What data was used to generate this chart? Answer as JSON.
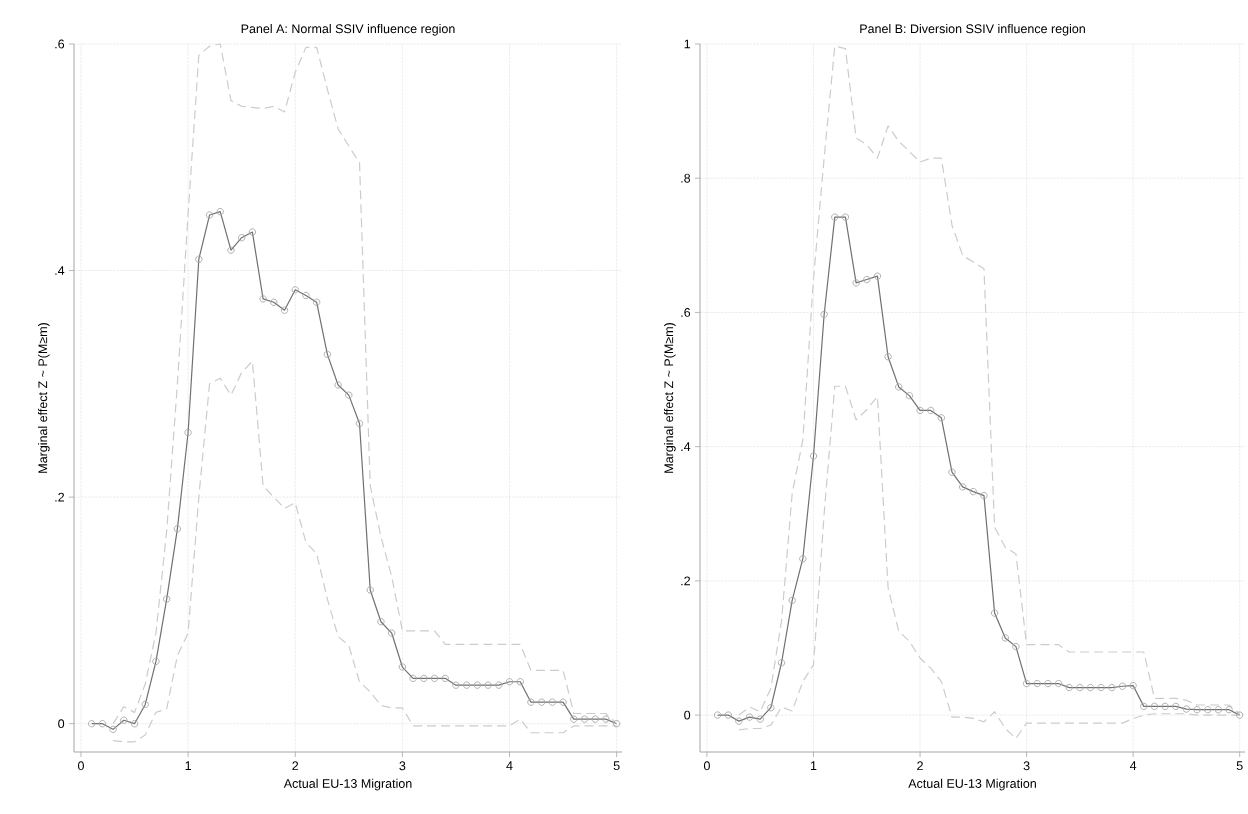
{
  "chart_data": [
    {
      "type": "line",
      "title": "Panel A: Normal SSIV influence region",
      "xlabel": "Actual EU-13 Migration",
      "ylabel": "Marginal effect Z ~ P(M≥m)",
      "grid": true,
      "xlim": [
        -0.065,
        5.05
      ],
      "ylim": [
        -0.025,
        0.6
      ],
      "xticks": [
        0,
        1,
        2,
        3,
        4,
        5
      ],
      "yticks": [
        0,
        {
          "value": 0.2,
          "label": ".2"
        },
        {
          "value": 0.4,
          "label": ".4"
        },
        {
          "value": 0.6,
          "label": ".6"
        }
      ],
      "x": [
        0.1,
        0.2,
        0.3,
        0.4,
        0.5,
        0.6,
        0.7,
        0.8,
        0.9,
        1.0,
        1.1,
        1.2,
        1.3,
        1.4,
        1.5,
        1.6,
        1.7,
        1.8,
        1.9,
        2.0,
        2.1,
        2.2,
        2.3,
        2.4,
        2.5,
        2.6,
        2.7,
        2.8,
        2.9,
        3.0,
        3.1,
        3.2,
        3.3,
        3.4,
        3.5,
        3.6,
        3.7,
        3.8,
        3.9,
        4.0,
        4.1,
        4.2,
        4.3,
        4.4,
        4.5,
        4.6,
        4.7,
        4.8,
        4.9,
        5.0
      ],
      "series": [
        {
          "color": "#707070",
          "marker": "circle",
          "line_style": "solid",
          "values": [
            0,
            0,
            -0.005,
            0.003,
            0,
            0.017,
            0.055,
            0.11,
            0.172,
            0.257,
            0.41,
            0.449,
            0.452,
            0.418,
            0.429,
            0.434,
            0.375,
            0.372,
            0.365,
            0.383,
            0.378,
            0.372,
            0.326,
            0.299,
            0.29,
            0.265,
            0.118,
            0.09,
            0.08,
            0.05,
            0.04,
            0.04,
            0.04,
            0.04,
            0.034,
            0.034,
            0.034,
            0.034,
            0.034,
            0.037,
            0.037,
            0.019,
            0.019,
            0.019,
            0.019,
            0.004,
            0.004,
            0.004,
            0.004,
            0.0
          ]
        },
        {
          "color": "#cccccc",
          "marker": "none",
          "line_style": "dashed",
          "x": [
            0.3,
            0.4,
            0.5,
            0.6,
            0.7,
            0.8,
            0.9,
            1.0,
            1.1,
            1.2,
            1.3,
            1.4,
            1.5,
            1.6,
            1.7,
            1.8,
            1.9,
            2.0,
            2.1,
            2.2,
            2.3,
            2.4,
            2.5,
            2.6,
            2.7,
            2.8,
            2.9,
            3.0,
            3.1,
            3.2,
            3.3,
            3.4,
            3.5,
            3.6,
            3.7,
            3.8,
            3.9,
            4.0,
            4.1,
            4.2,
            4.3,
            4.4,
            4.5,
            4.6,
            4.7,
            4.8,
            4.9,
            5.0
          ],
          "values": [
            0.0,
            0.015,
            0.01,
            0.035,
            0.08,
            0.17,
            0.3,
            0.45,
            0.59,
            0.598,
            0.6,
            0.55,
            0.545,
            0.544,
            0.543,
            0.545,
            0.54,
            0.575,
            0.597,
            0.597,
            0.56,
            0.525,
            0.51,
            0.495,
            0.21,
            0.165,
            0.13,
            0.082,
            0.082,
            0.082,
            0.082,
            0.07,
            0.07,
            0.07,
            0.07,
            0.07,
            0.07,
            0.07,
            0.07,
            0.047,
            0.047,
            0.047,
            0.047,
            0.009,
            0.009,
            0.009,
            0.009,
            0.0
          ]
        },
        {
          "color": "#cccccc",
          "marker": "none",
          "line_style": "dashed",
          "x": [
            0.3,
            0.4,
            0.5,
            0.6,
            0.7,
            0.8,
            0.9,
            1.0,
            1.1,
            1.2,
            1.3,
            1.4,
            1.5,
            1.6,
            1.7,
            1.8,
            1.9,
            2.0,
            2.1,
            2.2,
            2.3,
            2.4,
            2.5,
            2.6,
            2.7,
            2.8,
            2.9,
            3.0,
            3.1,
            3.2,
            3.3,
            3.4,
            3.5,
            3.6,
            3.7,
            3.8,
            3.9,
            4.0,
            4.1,
            4.2,
            4.3,
            4.4,
            4.5,
            4.6,
            4.7,
            4.8,
            4.9,
            5.0
          ],
          "values": [
            -0.015,
            -0.016,
            -0.016,
            -0.01,
            0.01,
            0.013,
            0.06,
            0.08,
            0.2,
            0.3,
            0.305,
            0.29,
            0.31,
            0.32,
            0.21,
            0.2,
            0.19,
            0.195,
            0.16,
            0.15,
            0.11,
            0.077,
            0.069,
            0.037,
            0.028,
            0.016,
            0.014,
            0.014,
            -0.002,
            -0.002,
            -0.002,
            -0.002,
            -0.002,
            -0.002,
            -0.002,
            -0.002,
            -0.002,
            -0.002,
            0.004,
            -0.008,
            -0.008,
            -0.008,
            -0.008,
            -0.002,
            -0.002,
            -0.002,
            -0.002,
            -0.002
          ]
        }
      ]
    },
    {
      "type": "line",
      "title": "Panel B: Diversion SSIV influence region",
      "xlabel": "Actual EU-13 Migration",
      "ylabel": "Marginal effect Z ~ P(M≥m)",
      "grid": true,
      "xlim": [
        -0.065,
        5.05
      ],
      "ylim": [
        -0.055,
        1
      ],
      "xticks": [
        0,
        1,
        2,
        3,
        4,
        5
      ],
      "yticks": [
        0,
        {
          "value": 0.2,
          "label": ".2"
        },
        {
          "value": 0.4,
          "label": ".4"
        },
        {
          "value": 0.6,
          "label": ".6"
        },
        {
          "value": 0.8,
          "label": ".8"
        },
        1
      ],
      "x": [
        0.1,
        0.2,
        0.3,
        0.4,
        0.5,
        0.6,
        0.7,
        0.8,
        0.9,
        1.0,
        1.1,
        1.2,
        1.3,
        1.4,
        1.5,
        1.6,
        1.7,
        1.8,
        1.9,
        2.0,
        2.1,
        2.2,
        2.3,
        2.4,
        2.5,
        2.6,
        2.7,
        2.8,
        2.9,
        3.0,
        3.1,
        3.2,
        3.3,
        3.4,
        3.5,
        3.6,
        3.7,
        3.8,
        3.9,
        4.0,
        4.1,
        4.2,
        4.3,
        4.4,
        4.5,
        4.6,
        4.7,
        4.8,
        4.9,
        5.0
      ],
      "series": [
        {
          "color": "#707070",
          "marker": "circle",
          "line_style": "solid",
          "values": [
            0,
            0,
            -0.009,
            -0.003,
            -0.006,
            0.011,
            0.078,
            0.171,
            0.233,
            0.386,
            0.597,
            0.742,
            0.742,
            0.644,
            0.649,
            0.654,
            0.534,
            0.489,
            0.476,
            0.454,
            0.454,
            0.443,
            0.362,
            0.34,
            0.333,
            0.327,
            0.152,
            0.115,
            0.102,
            0.047,
            0.047,
            0.047,
            0.047,
            0.041,
            0.041,
            0.041,
            0.041,
            0.041,
            0.043,
            0.044,
            0.013,
            0.013,
            0.013,
            0.013,
            0.009,
            0.008,
            0.008,
            0.008,
            0.008,
            0.0
          ]
        },
        {
          "color": "#cccccc",
          "marker": "none",
          "line_style": "dashed",
          "x": [
            0.3,
            0.4,
            0.5,
            0.6,
            0.7,
            0.8,
            0.9,
            1.0,
            1.1,
            1.2,
            1.3,
            1.4,
            1.5,
            1.6,
            1.7,
            1.8,
            1.9,
            2.0,
            2.1,
            2.2,
            2.3,
            2.4,
            2.5,
            2.6,
            2.7,
            2.8,
            2.9,
            3.0,
            3.1,
            3.2,
            3.3,
            3.4,
            3.5,
            3.6,
            3.7,
            3.8,
            3.9,
            4.0,
            4.1,
            4.2,
            4.3,
            4.4,
            4.5,
            4.6,
            4.7,
            4.8,
            4.9,
            5.0
          ],
          "values": [
            0.0,
            0.012,
            0.005,
            0.04,
            0.14,
            0.33,
            0.41,
            0.65,
            0.83,
            0.997,
            0.993,
            0.86,
            0.85,
            0.83,
            0.878,
            0.855,
            0.84,
            0.824,
            0.83,
            0.83,
            0.73,
            0.685,
            0.675,
            0.665,
            0.28,
            0.25,
            0.24,
            0.105,
            0.105,
            0.105,
            0.105,
            0.094,
            0.094,
            0.094,
            0.094,
            0.094,
            0.094,
            0.094,
            0.094,
            0.025,
            0.025,
            0.025,
            0.022,
            0.015,
            0.015,
            0.015,
            0.015,
            0.002
          ]
        },
        {
          "color": "#cccccc",
          "marker": "none",
          "line_style": "dashed",
          "x": [
            0.3,
            0.4,
            0.5,
            0.6,
            0.7,
            0.8,
            0.9,
            1.0,
            1.1,
            1.2,
            1.3,
            1.4,
            1.5,
            1.6,
            1.7,
            1.8,
            1.9,
            2.0,
            2.1,
            2.2,
            2.3,
            2.4,
            2.5,
            2.6,
            2.7,
            2.8,
            2.9,
            3.0,
            3.1,
            3.2,
            3.3,
            3.4,
            3.5,
            3.6,
            3.7,
            3.8,
            3.9,
            4.0,
            4.1,
            4.2,
            4.3,
            4.4,
            4.5,
            4.6,
            4.7,
            4.8,
            4.9,
            5.0
          ],
          "values": [
            -0.022,
            -0.02,
            -0.02,
            -0.015,
            0.012,
            0.006,
            0.05,
            0.075,
            0.3,
            0.49,
            0.49,
            0.44,
            0.455,
            0.475,
            0.19,
            0.125,
            0.11,
            0.085,
            0.07,
            0.05,
            -0.003,
            -0.003,
            -0.005,
            -0.01,
            0.005,
            -0.02,
            -0.035,
            -0.012,
            -0.012,
            -0.012,
            -0.012,
            -0.012,
            -0.012,
            -0.012,
            -0.012,
            -0.012,
            -0.012,
            -0.005,
            0.0,
            0.002,
            0.002,
            0.002,
            0.002,
            0.0,
            0.0,
            0.0,
            0.0,
            0.0
          ]
        }
      ]
    }
  ]
}
